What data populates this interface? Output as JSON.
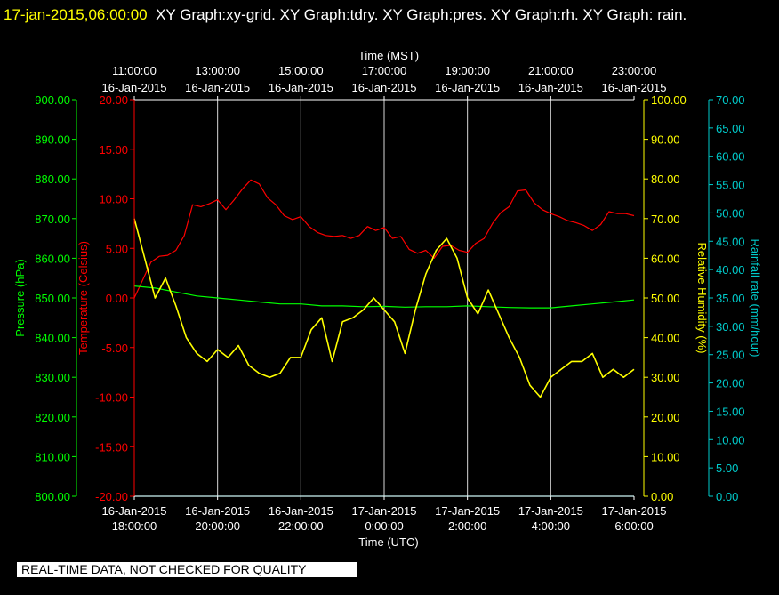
{
  "header": {
    "timestamp": "17-jan-2015,06:00:00",
    "graphs": "XY Graph:xy-grid.  XY Graph:tdry.  XY Graph:pres.  XY Graph:rh.  XY Graph: rain."
  },
  "footer": {
    "notice": "REAL-TIME DATA, NOT CHECKED FOR QUALITY"
  },
  "colors": {
    "pressure": "#00ff00",
    "temperature": "#ff0000",
    "humidity": "#ffff00",
    "rainfall": "#00cccc",
    "grid": "#ffffff",
    "background": "#000000"
  },
  "chart_data": {
    "type": "line",
    "grid": true,
    "x_bottom": {
      "label": "Time (UTC)",
      "ticks": [
        {
          "date": "16-Jan-2015",
          "time": "18:00:00"
        },
        {
          "date": "16-Jan-2015",
          "time": "20:00:00"
        },
        {
          "date": "16-Jan-2015",
          "time": "22:00:00"
        },
        {
          "date": "17-Jan-2015",
          "time": "0:00:00"
        },
        {
          "date": "17-Jan-2015",
          "time": "2:00:00"
        },
        {
          "date": "17-Jan-2015",
          "time": "4:00:00"
        },
        {
          "date": "17-Jan-2015",
          "time": "6:00:00"
        }
      ]
    },
    "x_top": {
      "label": "Time (MST)",
      "ticks": [
        {
          "time": "11:00:00",
          "date": "16-Jan-2015"
        },
        {
          "time": "13:00:00",
          "date": "16-Jan-2015"
        },
        {
          "time": "15:00:00",
          "date": "16-Jan-2015"
        },
        {
          "time": "17:00:00",
          "date": "16-Jan-2015"
        },
        {
          "time": "19:00:00",
          "date": "16-Jan-2015"
        },
        {
          "time": "21:00:00",
          "date": "16-Jan-2015"
        },
        {
          "time": "23:00:00",
          "date": "16-Jan-2015"
        }
      ]
    },
    "x_range_hours_utc": [
      18,
      30
    ],
    "axes": {
      "pressure": {
        "label": "Pressure (hPa)",
        "range": [
          800,
          900
        ],
        "ticks": [
          "900.00",
          "890.00",
          "880.00",
          "870.00",
          "860.00",
          "850.00",
          "840.00",
          "830.00",
          "820.00",
          "810.00",
          "800.00"
        ]
      },
      "temperature": {
        "label": "Temperature (Celsius)",
        "range": [
          -20,
          20
        ],
        "ticks": [
          "20.00",
          "15.00",
          "10.00",
          "5.00",
          "0.00",
          "-5.00",
          "-10.00",
          "-15.00",
          "-20.00"
        ]
      },
      "humidity": {
        "label": "Relative Humidity (%)",
        "range": [
          0,
          100
        ],
        "ticks": [
          "100.00",
          "90.00",
          "80.00",
          "70.00",
          "60.00",
          "50.00",
          "40.00",
          "30.00",
          "20.00",
          "10.00",
          "0.00"
        ]
      },
      "rainfall": {
        "label": "Rainfall rate (mm/hour)",
        "range": [
          0,
          70
        ],
        "ticks": [
          "70.00",
          "65.00",
          "60.00",
          "55.00",
          "50.00",
          "45.00",
          "40.00",
          "35.00",
          "30.00",
          "25.00",
          "20.00",
          "15.00",
          "10.00",
          "5.00",
          "0.00"
        ]
      }
    },
    "series": [
      {
        "name": "temperature",
        "axis": "temperature",
        "x": [
          18.0,
          18.2,
          18.4,
          18.6,
          18.8,
          19.0,
          19.2,
          19.4,
          19.6,
          19.8,
          20.0,
          20.2,
          20.4,
          20.6,
          20.8,
          21.0,
          21.2,
          21.4,
          21.6,
          21.8,
          22.0,
          22.2,
          22.4,
          22.6,
          22.8,
          23.0,
          23.2,
          23.4,
          23.6,
          23.8,
          24.0,
          24.2,
          24.4,
          24.6,
          24.8,
          25.0,
          25.2,
          25.4,
          25.6,
          25.8,
          26.0,
          26.2,
          26.4,
          26.6,
          26.8,
          27.0,
          27.2,
          27.4,
          27.6,
          27.8,
          28.0,
          28.2,
          28.4,
          28.6,
          28.8,
          29.0,
          29.2,
          29.4,
          29.6,
          29.8,
          30.0
        ],
        "y": [
          0.0,
          1.8,
          3.6,
          4.2,
          4.3,
          4.8,
          6.3,
          9.4,
          9.2,
          9.5,
          9.9,
          8.9,
          9.9,
          11.0,
          11.9,
          11.5,
          10.1,
          9.4,
          8.3,
          7.9,
          8.2,
          7.2,
          6.6,
          6.3,
          6.2,
          6.3,
          6.0,
          6.3,
          7.2,
          6.8,
          7.1,
          6.0,
          6.2,
          4.9,
          4.5,
          4.8,
          4.0,
          5.2,
          5.3,
          4.8,
          4.6,
          5.5,
          6.0,
          7.5,
          8.6,
          9.2,
          10.8,
          10.9,
          9.6,
          8.9,
          8.5,
          8.2,
          7.8,
          7.6,
          7.3,
          6.8,
          7.4,
          8.7,
          8.5,
          8.5,
          8.3
        ]
      },
      {
        "name": "pressure",
        "axis": "pressure",
        "x": [
          18.0,
          18.5,
          19.0,
          19.5,
          20.0,
          20.5,
          21.0,
          21.5,
          22.0,
          22.5,
          23.0,
          23.5,
          24.0,
          24.5,
          25.0,
          25.5,
          26.0,
          26.5,
          27.0,
          27.5,
          28.0,
          28.5,
          29.0,
          29.5,
          30.0
        ],
        "y": [
          853.0,
          852.5,
          851.5,
          850.5,
          850.0,
          849.5,
          849.0,
          848.5,
          848.5,
          848.0,
          848.0,
          847.8,
          847.9,
          847.7,
          847.8,
          847.8,
          848.0,
          847.8,
          847.6,
          847.5,
          847.5,
          848.0,
          848.5,
          849.0,
          849.5
        ]
      },
      {
        "name": "relative humidity",
        "axis": "humidity",
        "x": [
          18.0,
          18.25,
          18.5,
          18.75,
          19.0,
          19.25,
          19.5,
          19.75,
          20.0,
          20.25,
          20.5,
          20.75,
          21.0,
          21.25,
          21.5,
          21.75,
          22.0,
          22.25,
          22.5,
          22.75,
          23.0,
          23.25,
          23.5,
          23.75,
          24.0,
          24.25,
          24.5,
          24.75,
          25.0,
          25.25,
          25.5,
          25.75,
          26.0,
          26.25,
          26.5,
          26.75,
          27.0,
          27.25,
          27.5,
          27.75,
          28.0,
          28.25,
          28.5,
          28.75,
          29.0,
          29.25,
          29.5,
          29.75,
          30.0
        ],
        "y": [
          70.0,
          60.0,
          50.0,
          55.0,
          48.0,
          40.0,
          36.0,
          34.0,
          37.0,
          35.0,
          38.0,
          33.0,
          31.0,
          30.0,
          31.0,
          35.0,
          35.0,
          42.0,
          45.0,
          34.0,
          44.0,
          45.0,
          47.0,
          50.0,
          47.0,
          44.0,
          36.0,
          47.0,
          56.0,
          62.0,
          65.0,
          60.0,
          50.0,
          46.0,
          52.0,
          46.0,
          40.0,
          35.0,
          28.0,
          25.0,
          30.0,
          32.0,
          34.0,
          34.0,
          36.0,
          30.0,
          32.0,
          30.0,
          32.0
        ]
      },
      {
        "name": "rainfall rate",
        "axis": "rainfall",
        "x": [
          18,
          30
        ],
        "y": [
          0,
          0
        ]
      }
    ]
  }
}
